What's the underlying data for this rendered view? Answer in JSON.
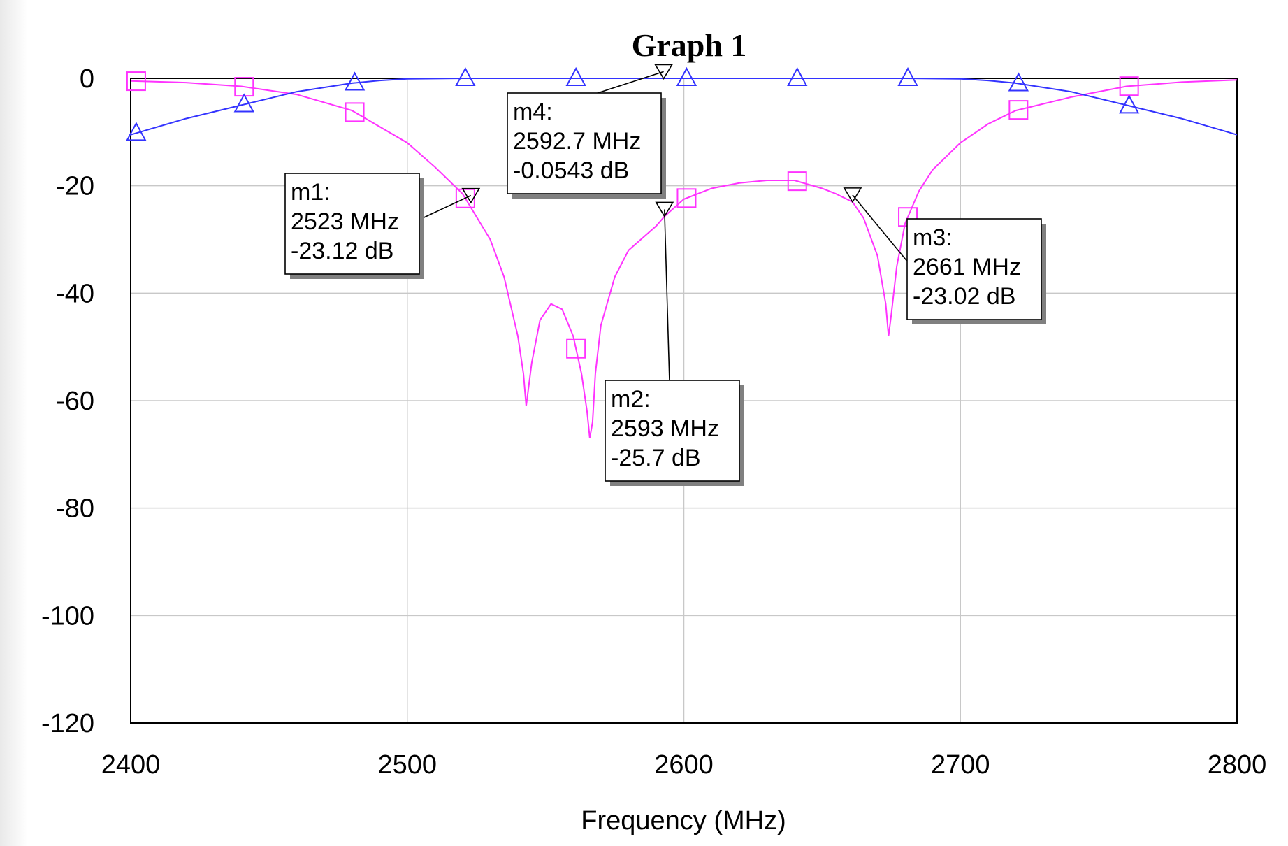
{
  "chart_data": {
    "type": "line",
    "title": "Graph 1",
    "xlabel": "Frequency (MHz)",
    "ylabel": "",
    "xlim": [
      2400,
      2800
    ],
    "ylim": [
      -120,
      0
    ],
    "x_ticks": [
      "2400",
      "2500",
      "2600",
      "2700",
      "2800"
    ],
    "y_ticks": [
      "0",
      "-20",
      "-40",
      "-60",
      "-80",
      "-100",
      "-120"
    ],
    "grid": true,
    "series": [
      {
        "color": "#ff33ff",
        "marker": "square",
        "x": [
          2400,
          2420,
          2440,
          2460,
          2480,
          2500,
          2510,
          2520,
          2530,
          2535,
          2540,
          2542,
          2543,
          2545,
          2548,
          2552,
          2556,
          2560,
          2563,
          2565,
          2566,
          2567,
          2568,
          2570,
          2575,
          2580,
          2590,
          2593,
          2600,
          2610,
          2620,
          2630,
          2640,
          2650,
          2655,
          2661,
          2665,
          2670,
          2673,
          2674,
          2675,
          2677,
          2680,
          2685,
          2690,
          2700,
          2710,
          2720,
          2740,
          2760,
          2780,
          2800
        ],
        "y": [
          -0.5,
          -0.8,
          -1.5,
          -3,
          -6,
          -12,
          -16.5,
          -21.5,
          -30,
          -37,
          -48,
          -55,
          -61,
          -53,
          -45,
          -42,
          -43,
          -48,
          -55,
          -62,
          -67,
          -64,
          -55,
          -46,
          -37,
          -32,
          -27.5,
          -25.7,
          -22.5,
          -20.5,
          -19.5,
          -19,
          -19,
          -20.5,
          -21.5,
          -23.02,
          -26,
          -33,
          -42,
          -48,
          -44,
          -35,
          -27,
          -21,
          -17,
          -12,
          -8.5,
          -6,
          -3.5,
          -1.5,
          -0.7,
          -0.3
        ],
        "markers_x": [
          2402,
          2441,
          2481,
          2521,
          2561,
          2601,
          2641,
          2681,
          2721,
          2761
        ]
      },
      {
        "color": "#3333ff",
        "marker": "triangle",
        "x": [
          2400,
          2420,
          2440,
          2460,
          2480,
          2490,
          2500,
          2520,
          2540,
          2560,
          2580,
          2600,
          2620,
          2640,
          2660,
          2680,
          2700,
          2710,
          2720,
          2740,
          2760,
          2780,
          2800
        ],
        "y": [
          -10.5,
          -7.5,
          -5,
          -2.5,
          -0.9,
          -0.4,
          -0.1,
          0,
          0,
          0,
          0,
          0,
          0,
          0,
          0,
          0,
          -0.1,
          -0.4,
          -0.9,
          -2.5,
          -5,
          -7.5,
          -10.5
        ],
        "markers_x": [
          2402,
          2441,
          2481,
          2521,
          2561,
          2601,
          2641,
          2681,
          2721,
          2761
        ]
      }
    ],
    "markers": [
      {
        "name": "m1:",
        "freq_label": "2523 MHz",
        "value_label": "-23.12 dB",
        "x": 2523,
        "y": -23.12
      },
      {
        "name": "m2:",
        "freq_label": "2593 MHz",
        "value_label": "-25.7 dB",
        "x": 2593,
        "y": -25.7
      },
      {
        "name": "m3:",
        "freq_label": "2661 MHz",
        "value_label": "-23.02 dB",
        "x": 2661,
        "y": -23.02
      },
      {
        "name": "m4:",
        "freq_label": "2592.7 MHz",
        "value_label": "-0.0543 dB",
        "x": 2592.7,
        "y": -0.0543
      }
    ]
  }
}
